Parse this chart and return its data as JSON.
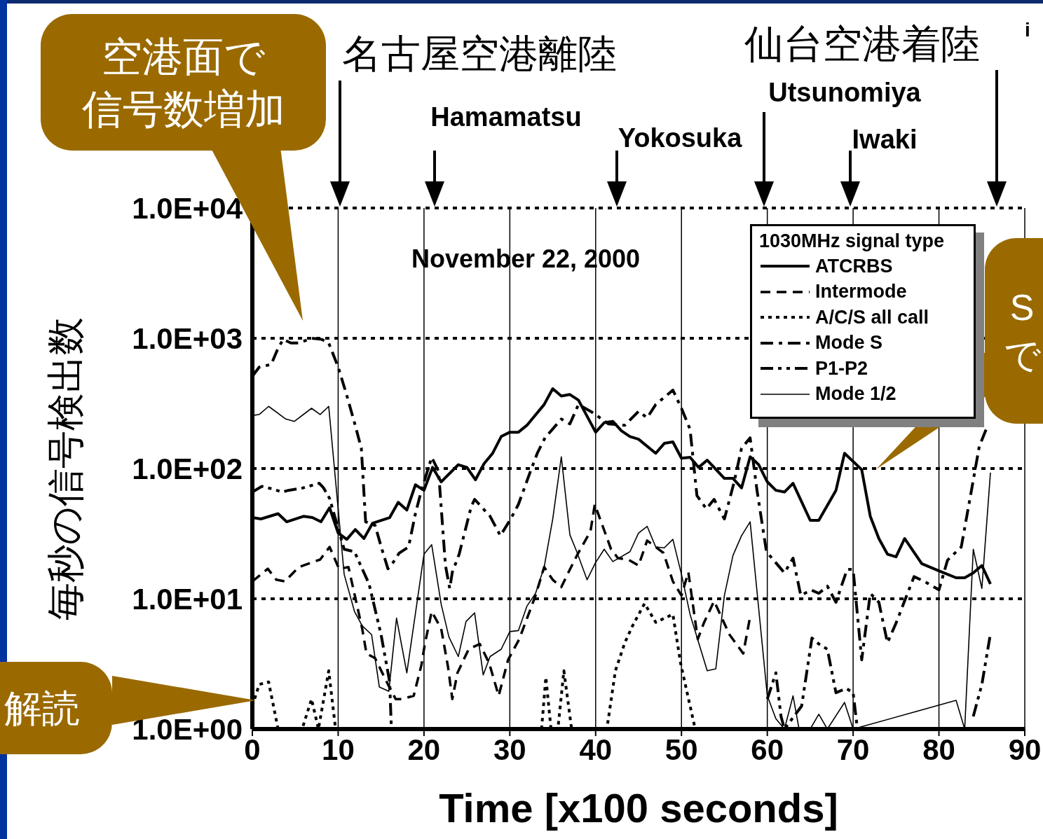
{
  "chart_data": {
    "type": "line",
    "xlabel": "Time [x100 seconds]",
    "ylabel": "毎秒の信号検出数",
    "legend_title": "1030MHz signal type",
    "legend": "top right",
    "grid": true,
    "log": true,
    "marker": "none",
    "xlim": [
      0,
      90
    ],
    "xticks": [
      0,
      10,
      20,
      30,
      40,
      50,
      60,
      70,
      80,
      90
    ],
    "ylim": [
      1,
      10000
    ],
    "yticks": [
      {
        "value": 1,
        "label": "1.0E+00"
      },
      {
        "value": 10,
        "label": "1.0E+01"
      },
      {
        "value": 100,
        "label": "1.0E+02"
      },
      {
        "value": 1000,
        "label": "1.0E+03"
      },
      {
        "value": 10000,
        "label": "1.0E+04"
      }
    ],
    "annotations": [
      "November 22, 2000",
      "空港面で信号数増加",
      "解読",
      "Sで",
      "i",
      "名古屋空港離陸",
      "Hamamatsu",
      "Yokosuka",
      "Utsunomiya",
      "Iwaki",
      "仙台空港着陸"
    ],
    "series": [
      {
        "name": "ATCRBS",
        "color": "#000000",
        "line_style": "solid",
        "x": [
          0,
          1,
          3,
          4,
          6,
          7,
          8,
          9,
          10,
          11,
          12,
          13,
          14,
          16,
          17,
          18,
          19,
          20,
          21,
          22,
          24,
          25,
          26,
          27,
          28,
          29,
          30,
          31,
          32,
          34,
          35,
          36,
          37,
          38,
          40,
          41,
          42,
          43,
          44,
          45,
          47,
          48,
          49,
          50,
          51,
          52,
          53,
          55,
          56,
          57,
          58,
          59,
          60,
          61,
          62,
          63,
          65,
          66,
          68,
          69,
          71,
          72,
          73,
          74,
          75,
          76,
          78,
          80,
          82,
          83,
          84,
          85,
          86
        ],
        "values": [
          42,
          41,
          45,
          39,
          43,
          42,
          39,
          50,
          32,
          28.6,
          34,
          29,
          38,
          42,
          55,
          48,
          75,
          68,
          102,
          79,
          107,
          102,
          82,
          109,
          131,
          176,
          190,
          190,
          215,
          310,
          410,
          360,
          370,
          335,
          190,
          225,
          230,
          195,
          176,
          168,
          131,
          156,
          160,
          120,
          122,
          102,
          116,
          84,
          84,
          71,
          123,
          107,
          79,
          68,
          66,
          77,
          40,
          40,
          68,
          131,
          98,
          43,
          29,
          22,
          21,
          29,
          18.6,
          16.4,
          14.5,
          14.5,
          15.8,
          18,
          13
        ]
      },
      {
        "name": "Intermode",
        "color": "#000000",
        "line_style": "dashed",
        "x": [
          0,
          1.8,
          2.8,
          3.8,
          5.4,
          7.9,
          9,
          10.1,
          11.2,
          12.8,
          13.3,
          14.3,
          15.8,
          16.7,
          17.4,
          18.8,
          19.7,
          20.1,
          20.9,
          22,
          22.8,
          23.3,
          23.9,
          25.2,
          26.5,
          27.6,
          28.7,
          29.8,
          31.1,
          33,
          34,
          35,
          36,
          36.8,
          37.9,
          39.4,
          39.9,
          41.8,
          42.6,
          43.8,
          45,
          46,
          47,
          47.9,
          49,
          50,
          50.8,
          51.9,
          52.6,
          53.8,
          55.6,
          57.2,
          58
        ],
        "values": [
          13.6,
          17,
          14,
          13.6,
          17.5,
          20,
          25,
          17,
          17.5,
          5.9,
          3.8,
          3.5,
          2.2,
          1.7,
          1.7,
          1.8,
          3.1,
          4.5,
          8,
          5.9,
          3,
          1.7,
          2.7,
          4.1,
          4.5,
          3.2,
          1.8,
          3.4,
          4.9,
          10.6,
          17.5,
          14,
          12.3,
          15.8,
          22,
          33,
          53,
          24,
          20.5,
          20,
          18,
          28,
          25,
          22.5,
          13.6,
          10.6,
          16,
          4.9,
          6.5,
          9.6,
          5.3,
          3.8,
          7.3
        ]
      },
      {
        "name": "A/C/S all call",
        "color": "#000000",
        "line_style": "dotted",
        "x": [
          0,
          0.8,
          1.9,
          3,
          5.8,
          6.9,
          7.7,
          8.9,
          9.7,
          20,
          33.7,
          34.2,
          34.8,
          35.6,
          36.3,
          37.2,
          40,
          41.4,
          42.3,
          43.4,
          44.3,
          45.7,
          47,
          49,
          49.9,
          51.6
        ],
        "values": [
          1.5,
          2.2,
          2.3,
          1,
          1,
          1.7,
          1,
          2.8,
          1,
          null,
          1,
          2.5,
          1,
          1,
          2.8,
          1,
          null,
          1.1,
          2.8,
          4.6,
          6.2,
          9.2,
          6.6,
          7.6,
          3.2,
          1
        ]
      },
      {
        "name": "Mode S",
        "color": "#000000",
        "line_style": "dashdot",
        "x": [
          0,
          0.8,
          2.2,
          3,
          3.6,
          4.5,
          5.4,
          6.9,
          8.1,
          8.9,
          10,
          10.9,
          11.9,
          12.7,
          13.2,
          14.3,
          15.1,
          15.8,
          16.4,
          17.1,
          18.2,
          19,
          19.7,
          20.9,
          21.7,
          22.5,
          23,
          23.3,
          24.1,
          25.5,
          25.9,
          27.7,
          28.9,
          30.1,
          31,
          32.4,
          33.2,
          34.1,
          36,
          37,
          38,
          39.6,
          40.9,
          41.5,
          43.4,
          45,
          46,
          47,
          49,
          50,
          51,
          51.8,
          52.9,
          53.8,
          55,
          56.1,
          57,
          58,
          58.8,
          59.9,
          62,
          63,
          63.9,
          65.1,
          66,
          67,
          68,
          69.3,
          70,
          71,
          72,
          73,
          74,
          75,
          77.1,
          78.3,
          80,
          81,
          82.6,
          83.6,
          84.7,
          85.5
        ],
        "values": [
          510,
          600,
          630,
          840,
          980,
          920,
          920,
          1000,
          980,
          920,
          600,
          385,
          225,
          143,
          39,
          36.6,
          24,
          17,
          19,
          22.4,
          25,
          45,
          68,
          122,
          95,
          18,
          12,
          16,
          22,
          51,
          58,
          43,
          30.5,
          41,
          53,
          95,
          131,
          172,
          240,
          220,
          310,
          270,
          235,
          220,
          215,
          275,
          245,
          310,
          400,
          290,
          200,
          62,
          49,
          58,
          41,
          77,
          143,
          172,
          68,
          23,
          15.8,
          20.5,
          10.6,
          11.7,
          11,
          12.5,
          9.4,
          16.8,
          16.8,
          3.4,
          11,
          9.4,
          4.6,
          6.5,
          14.8,
          13.6,
          11.7,
          19.8,
          25,
          58,
          148,
          200
        ]
      },
      {
        "name": "P1-P2",
        "color": "#000000",
        "line_style": "dashdotdot",
        "x": [
          0,
          1.1,
          2.2,
          3.5,
          4.2,
          5.9,
          7.8,
          8.3,
          9,
          10.7,
          11.9,
          13.6,
          15,
          16,
          16.2,
          30,
          60,
          61,
          61.6,
          62,
          64,
          65.2,
          66,
          67,
          68,
          69.2,
          70,
          70.5,
          80,
          84,
          85,
          86
        ],
        "values": [
          66,
          73,
          70,
          66,
          68,
          71,
          77,
          71,
          59,
          24,
          23,
          13,
          5.3,
          2.3,
          1,
          null,
          1.7,
          2.7,
          1.25,
          1,
          1.5,
          5,
          4.5,
          4.1,
          1.9,
          2.05,
          1.9,
          1,
          null,
          1.25,
          2.2,
          5.4
        ]
      },
      {
        "name": "Mode 1/2",
        "color": "#000000",
        "line_style": "solid",
        "x": [
          0,
          0.8,
          1.9,
          3.9,
          4.9,
          6.9,
          7.9,
          8.9,
          10.7,
          11.9,
          12.8,
          13.9,
          14.8,
          15.9,
          16.8,
          18,
          20,
          20.9,
          22,
          22.9,
          24,
          24.9,
          25.9,
          26.9,
          27.7,
          29,
          30,
          31,
          32,
          33,
          34,
          35,
          36,
          37,
          37.8,
          39,
          40,
          41,
          42,
          44,
          45,
          46,
          47,
          48,
          49,
          50,
          51,
          53,
          54,
          55,
          56,
          57,
          58,
          60,
          61,
          62,
          63,
          63.7,
          65,
          66,
          67,
          69,
          70,
          82,
          83,
          84,
          85,
          86
        ],
        "values": [
          255,
          260,
          300,
          240,
          230,
          290,
          260,
          300,
          15.4,
          8,
          6.2,
          5.3,
          2.1,
          1.95,
          7.1,
          2.7,
          22,
          26,
          9.1,
          5.1,
          3.6,
          6.7,
          7.8,
          2.6,
          3.6,
          4.1,
          5.6,
          5.7,
          8.8,
          11,
          17.5,
          41,
          123,
          31,
          23,
          14,
          19,
          24,
          19.3,
          23,
          32,
          36,
          25,
          24.6,
          28.6,
          15.4,
          7.6,
          2.8,
          2.9,
          10.6,
          21.5,
          30.5,
          39,
          1.8,
          1.2,
          1,
          1.8,
          1,
          1,
          1.3,
          1,
          1.6,
          1,
          1.66,
          1,
          24,
          12,
          93
        ]
      }
    ]
  }
}
